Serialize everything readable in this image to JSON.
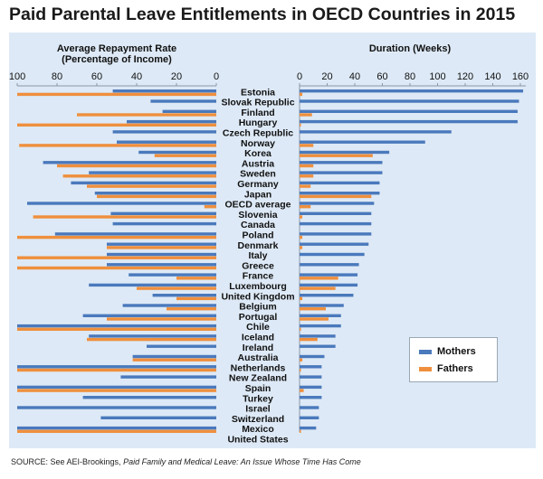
{
  "title": "Paid Parental Leave Entitlements in OECD Countries in 2015",
  "source": {
    "prefix": "SOURCE: See AEI-Brookings, ",
    "italic": "Paid Family and Medical Leave: An Issue Whose Time Has Come"
  },
  "colors": {
    "mothers": "#4a79bc",
    "fathers": "#ef8f3d",
    "panel": "#dde9f6",
    "axis": "#8b97a6"
  },
  "legend": {
    "mothers": "Mothers",
    "fathers": "Fathers",
    "position": "bottom-right"
  },
  "chart_data": [
    {
      "type": "bar",
      "orientation": "horizontal",
      "title": "Average Repayment Rate\n(Percentage of Income)",
      "xlim": [
        100,
        0
      ],
      "ticks": [
        "100",
        "80",
        "60",
        "40",
        "20",
        "0"
      ],
      "grid": false,
      "categories": [
        "Estonia",
        "Slovak Republic",
        "Finland",
        "Hungary",
        "Czech Republic",
        "Norway",
        "Korea",
        "Austria",
        "Sweden",
        "Germany",
        "Japan",
        "OECD average",
        "Slovenia",
        "Canada",
        "Poland",
        "Denmark",
        "Italy",
        "Greece",
        "France",
        "Luxembourg",
        "United Kingdom",
        "Belgium",
        "Portugal",
        "Chile",
        "Iceland",
        "Ireland",
        "Australia",
        "Netherlands",
        "New Zealand",
        "Spain",
        "Turkey",
        "Israel",
        "Switzerland",
        "Mexico",
        "United States"
      ],
      "series": [
        {
          "name": "Mothers",
          "values": [
            52,
            33,
            27,
            45,
            52,
            50,
            39,
            87,
            64,
            73,
            61,
            95,
            53,
            52,
            81,
            55,
            55,
            55,
            44,
            64,
            32,
            47,
            67,
            100,
            64,
            35,
            42,
            100,
            48,
            100,
            67,
            100,
            58,
            100,
            0
          ]
        },
        {
          "name": "Fathers",
          "values": [
            100,
            0,
            70,
            100,
            0,
            99,
            31,
            80,
            77,
            65,
            60,
            6,
            92,
            0,
            100,
            55,
            100,
            100,
            20,
            40,
            20,
            25,
            55,
            100,
            65,
            0,
            42,
            100,
            0,
            100,
            0,
            0,
            0,
            100,
            0
          ]
        }
      ]
    },
    {
      "type": "bar",
      "orientation": "horizontal",
      "title": "Duration (Weeks)",
      "xlim": [
        0,
        160
      ],
      "ticks": [
        "0",
        "20",
        "40",
        "60",
        "80",
        "100",
        "120",
        "140",
        "160"
      ],
      "grid": false,
      "categories": [
        "Estonia",
        "Slovak Republic",
        "Finland",
        "Hungary",
        "Czech Republic",
        "Norway",
        "Korea",
        "Austria",
        "Sweden",
        "Germany",
        "Japan",
        "OECD average",
        "Slovenia",
        "Canada",
        "Poland",
        "Denmark",
        "Italy",
        "Greece",
        "France",
        "Luxembourg",
        "United Kingdom",
        "Belgium",
        "Portugal",
        "Chile",
        "Iceland",
        "Ireland",
        "Australia",
        "Netherlands",
        "New Zealand",
        "Spain",
        "Turkey",
        "Israel",
        "Switzerland",
        "Mexico",
        "United States"
      ],
      "series": [
        {
          "name": "Mothers",
          "values": [
            162,
            159,
            158,
            158,
            110,
            91,
            65,
            60,
            60,
            58,
            58,
            54,
            52,
            52,
            52,
            50,
            47,
            43,
            42,
            42,
            39,
            32,
            30,
            30,
            26,
            26,
            18,
            16,
            16,
            16,
            16,
            14,
            14,
            12,
            0
          ]
        },
        {
          "name": "Fathers",
          "values": [
            2,
            0,
            9,
            1,
            0,
            10,
            53,
            10,
            10,
            8,
            52,
            8,
            2,
            0,
            2,
            2,
            0,
            0,
            28,
            26,
            2,
            19,
            21,
            1,
            13,
            0,
            2,
            1,
            0,
            3,
            0,
            0,
            0,
            1,
            0
          ]
        }
      ]
    }
  ]
}
